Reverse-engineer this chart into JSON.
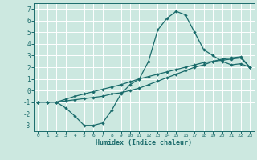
{
  "xlabel": "Humidex (Indice chaleur)",
  "bg_color": "#cce8e0",
  "grid_color": "#ffffff",
  "line_color": "#1a6b6b",
  "xlim": [
    -0.5,
    23.5
  ],
  "ylim": [
    -3.5,
    7.5
  ],
  "xticks": [
    0,
    1,
    2,
    3,
    4,
    5,
    6,
    7,
    8,
    9,
    10,
    11,
    12,
    13,
    14,
    15,
    16,
    17,
    18,
    19,
    20,
    21,
    22,
    23
  ],
  "yticks": [
    -3,
    -2,
    -1,
    0,
    1,
    2,
    3,
    4,
    5,
    6,
    7
  ],
  "line1_x": [
    0,
    1,
    2,
    3,
    4,
    5,
    6,
    7,
    8,
    9,
    10,
    11,
    12,
    13,
    14,
    15,
    16,
    17,
    18,
    19,
    20,
    21,
    22,
    23
  ],
  "line1_y": [
    -1,
    -1,
    -1,
    -1.5,
    -2.2,
    -3.0,
    -3.0,
    -2.8,
    -1.7,
    -0.3,
    0.5,
    1.0,
    2.5,
    5.2,
    6.2,
    6.8,
    6.5,
    5.0,
    3.5,
    3.0,
    2.5,
    2.2,
    2.3,
    2.0
  ],
  "line2_x": [
    0,
    1,
    2,
    3,
    4,
    5,
    6,
    7,
    8,
    9,
    10,
    11,
    12,
    13,
    14,
    15,
    16,
    17,
    18,
    19,
    20,
    21,
    22,
    23
  ],
  "line2_y": [
    -1,
    -1,
    -1,
    -0.9,
    -0.8,
    -0.7,
    -0.6,
    -0.5,
    -0.3,
    -0.2,
    0.0,
    0.2,
    0.5,
    0.8,
    1.1,
    1.4,
    1.7,
    2.0,
    2.2,
    2.5,
    2.7,
    2.8,
    2.9,
    2.0
  ],
  "line3_x": [
    0,
    1,
    2,
    3,
    4,
    5,
    6,
    7,
    8,
    9,
    10,
    11,
    12,
    13,
    14,
    15,
    16,
    17,
    18,
    19,
    20,
    21,
    22,
    23
  ],
  "line3_y": [
    -1,
    -1,
    -1,
    -0.75,
    -0.5,
    -0.3,
    -0.1,
    0.1,
    0.3,
    0.5,
    0.75,
    1.0,
    1.2,
    1.4,
    1.6,
    1.8,
    2.0,
    2.2,
    2.4,
    2.5,
    2.6,
    2.7,
    2.8,
    2.0
  ]
}
